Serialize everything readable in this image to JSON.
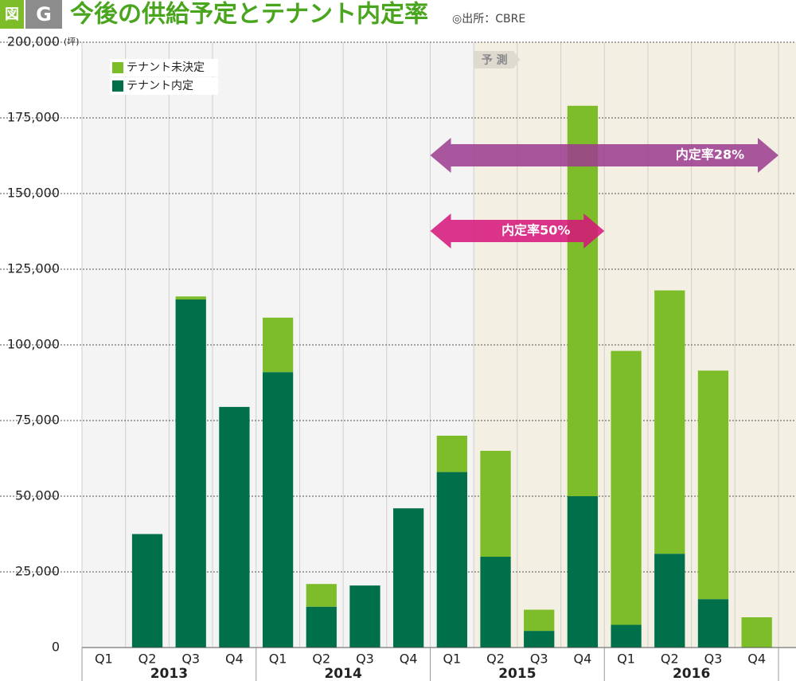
{
  "chart_data": {
    "type": "stacked-bar",
    "badge": "図",
    "badge_letter": "G",
    "title": "今後の供給予定とテナント内定率",
    "source": "◎出所：CBRE",
    "y_unit": "(坪)",
    "forecast_label": "予 測",
    "categories": [
      "Q1",
      "Q2",
      "Q3",
      "Q4",
      "Q1",
      "Q2",
      "Q3",
      "Q4",
      "Q1",
      "Q2",
      "Q3",
      "Q4",
      "Q1",
      "Q2",
      "Q3",
      "Q4"
    ],
    "years": [
      "2013",
      "2014",
      "2015",
      "2016"
    ],
    "series": [
      {
        "name": "テナント未決定",
        "color": "#7dbd2a",
        "values": [
          0,
          0,
          1000,
          0,
          18000,
          7500,
          0,
          0,
          12000,
          35000,
          7000,
          129000,
          90500,
          87000,
          75500,
          10000
        ]
      },
      {
        "name": "テナント内定",
        "color": "#00704a",
        "values": [
          0,
          37500,
          115000,
          79500,
          91000,
          13500,
          20500,
          46000,
          58000,
          30000,
          5500,
          50000,
          7500,
          31000,
          16000,
          0
        ]
      }
    ],
    "annotations": [
      {
        "text": "内定率28%",
        "color": "#9b3a8e"
      },
      {
        "text": "内定率50%",
        "color": "#d6127a"
      }
    ],
    "ylim": [
      0,
      200000
    ],
    "yticks": [
      0,
      {
        "value": 25000,
        "label": "25,000"
      },
      {
        "value": 50000,
        "label": "50,000"
      },
      {
        "value": 75000,
        "label": "75,000"
      },
      {
        "value": 100000,
        "label": "100,000"
      },
      {
        "value": 125000,
        "label": "125,000"
      },
      {
        "value": 150000,
        "label": "150,000"
      },
      {
        "value": 175000,
        "label": "175,000"
      },
      {
        "value": 200000,
        "label": "200,000"
      }
    ],
    "grid": true
  }
}
